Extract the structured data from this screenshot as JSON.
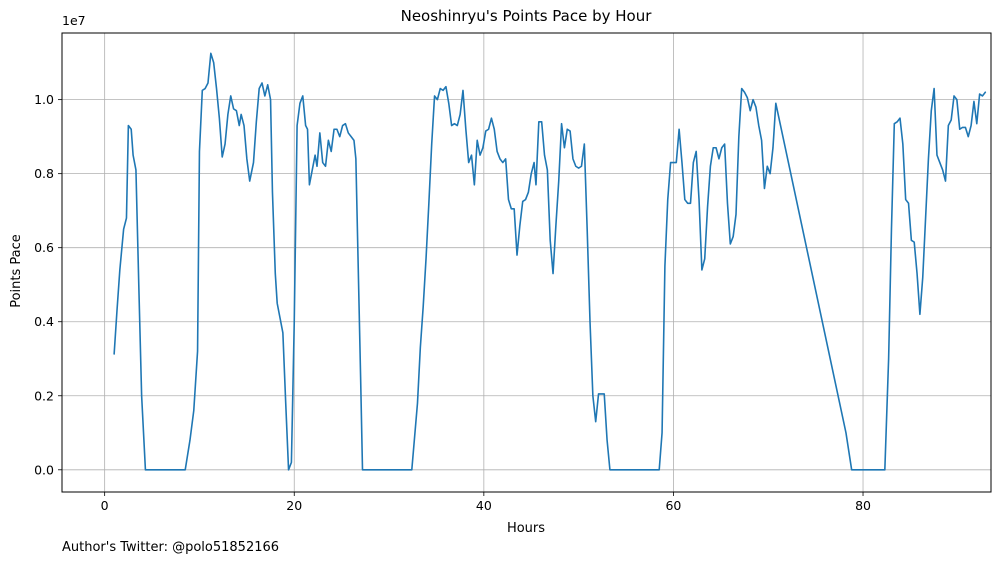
{
  "chart_data": {
    "type": "line",
    "title": "Neoshinryu's Points Pace by Hour",
    "xlabel": "Hours",
    "ylabel": "Points Pace",
    "y_offset_label": "1e7",
    "xlim": [
      -4.5,
      93.5
    ],
    "ylim": [
      -600000,
      11800000
    ],
    "x_ticks": [
      0,
      20,
      40,
      60,
      80
    ],
    "x_tick_labels": [
      "0",
      "20",
      "40",
      "60",
      "80"
    ],
    "y_ticks": [
      0,
      2000000,
      4000000,
      6000000,
      8000000,
      10000000
    ],
    "y_tick_labels": [
      "0.0",
      "0.2",
      "0.4",
      "0.6",
      "0.8",
      "1.0"
    ],
    "grid": true,
    "series": [
      {
        "color": "#1f77b4",
        "points": [
          [
            1.0,
            3130000
          ],
          [
            1.3,
            4300000
          ],
          [
            1.6,
            5400000
          ],
          [
            2.0,
            6500000
          ],
          [
            2.3,
            6800000
          ],
          [
            2.5,
            9300000
          ],
          [
            2.8,
            9200000
          ],
          [
            3.0,
            8500000
          ],
          [
            3.3,
            8100000
          ],
          [
            3.6,
            5000000
          ],
          [
            3.9,
            2000000
          ],
          [
            4.3,
            0
          ],
          [
            5.0,
            0
          ],
          [
            6.0,
            0
          ],
          [
            7.0,
            0
          ],
          [
            8.0,
            0
          ],
          [
            8.5,
            0
          ],
          [
            9.0,
            800000
          ],
          [
            9.4,
            1600000
          ],
          [
            9.8,
            3200000
          ],
          [
            10.0,
            8600000
          ],
          [
            10.3,
            10250000
          ],
          [
            10.6,
            10300000
          ],
          [
            10.9,
            10450000
          ],
          [
            11.2,
            11250000
          ],
          [
            11.5,
            11000000
          ],
          [
            11.8,
            10300000
          ],
          [
            12.1,
            9500000
          ],
          [
            12.4,
            8450000
          ],
          [
            12.7,
            8800000
          ],
          [
            13.0,
            9600000
          ],
          [
            13.3,
            10100000
          ],
          [
            13.6,
            9750000
          ],
          [
            13.9,
            9700000
          ],
          [
            14.2,
            9300000
          ],
          [
            14.4,
            9600000
          ],
          [
            14.7,
            9300000
          ],
          [
            15.0,
            8400000
          ],
          [
            15.3,
            7800000
          ],
          [
            15.7,
            8300000
          ],
          [
            16.0,
            9400000
          ],
          [
            16.3,
            10300000
          ],
          [
            16.6,
            10450000
          ],
          [
            16.9,
            10100000
          ],
          [
            17.2,
            10400000
          ],
          [
            17.5,
            10000000
          ],
          [
            17.7,
            7500000
          ],
          [
            18.0,
            5300000
          ],
          [
            18.2,
            4500000
          ],
          [
            18.5,
            4100000
          ],
          [
            18.8,
            3700000
          ],
          [
            19.1,
            1800000
          ],
          [
            19.4,
            0
          ],
          [
            19.7,
            200000
          ],
          [
            20.0,
            4000000
          ],
          [
            20.3,
            9300000
          ],
          [
            20.6,
            9900000
          ],
          [
            20.9,
            10100000
          ],
          [
            21.2,
            9300000
          ],
          [
            21.4,
            9200000
          ],
          [
            21.6,
            7700000
          ],
          [
            21.9,
            8100000
          ],
          [
            22.2,
            8500000
          ],
          [
            22.4,
            8200000
          ],
          [
            22.7,
            9100000
          ],
          [
            23.0,
            8300000
          ],
          [
            23.3,
            8200000
          ],
          [
            23.6,
            8900000
          ],
          [
            23.9,
            8600000
          ],
          [
            24.2,
            9200000
          ],
          [
            24.5,
            9200000
          ],
          [
            24.8,
            9000000
          ],
          [
            25.1,
            9300000
          ],
          [
            25.4,
            9350000
          ],
          [
            25.7,
            9100000
          ],
          [
            26.0,
            9000000
          ],
          [
            26.3,
            8900000
          ],
          [
            26.5,
            8400000
          ],
          [
            27.0,
            2500000
          ],
          [
            27.2,
            0
          ],
          [
            28.0,
            0
          ],
          [
            30.0,
            0
          ],
          [
            32.4,
            0
          ],
          [
            33.0,
            1800000
          ],
          [
            33.3,
            3300000
          ],
          [
            33.6,
            4400000
          ],
          [
            33.9,
            5700000
          ],
          [
            34.2,
            7200000
          ],
          [
            34.5,
            8800000
          ],
          [
            34.8,
            10100000
          ],
          [
            35.1,
            10000000
          ],
          [
            35.4,
            10300000
          ],
          [
            35.7,
            10250000
          ],
          [
            36.0,
            10350000
          ],
          [
            36.3,
            9900000
          ],
          [
            36.6,
            9300000
          ],
          [
            36.9,
            9350000
          ],
          [
            37.2,
            9300000
          ],
          [
            37.5,
            9600000
          ],
          [
            37.8,
            10250000
          ],
          [
            38.1,
            9200000
          ],
          [
            38.4,
            8300000
          ],
          [
            38.7,
            8500000
          ],
          [
            39.0,
            7700000
          ],
          [
            39.3,
            8900000
          ],
          [
            39.6,
            8500000
          ],
          [
            39.9,
            8700000
          ],
          [
            40.2,
            9150000
          ],
          [
            40.5,
            9200000
          ],
          [
            40.8,
            9500000
          ],
          [
            41.1,
            9200000
          ],
          [
            41.4,
            8600000
          ],
          [
            41.7,
            8400000
          ],
          [
            42.0,
            8300000
          ],
          [
            42.3,
            8400000
          ],
          [
            42.6,
            7300000
          ],
          [
            42.9,
            7050000
          ],
          [
            43.2,
            7050000
          ],
          [
            43.5,
            5800000
          ],
          [
            43.8,
            6600000
          ],
          [
            44.1,
            7250000
          ],
          [
            44.4,
            7300000
          ],
          [
            44.7,
            7500000
          ],
          [
            45.0,
            8000000
          ],
          [
            45.3,
            8300000
          ],
          [
            45.5,
            7700000
          ],
          [
            45.8,
            9400000
          ],
          [
            46.1,
            9400000
          ],
          [
            46.4,
            8500000
          ],
          [
            46.7,
            8100000
          ],
          [
            47.0,
            6200000
          ],
          [
            47.3,
            5300000
          ],
          [
            47.6,
            6600000
          ],
          [
            47.9,
            7800000
          ],
          [
            48.2,
            9350000
          ],
          [
            48.5,
            8700000
          ],
          [
            48.8,
            9200000
          ],
          [
            49.1,
            9150000
          ],
          [
            49.4,
            8400000
          ],
          [
            49.7,
            8200000
          ],
          [
            50.0,
            8150000
          ],
          [
            50.3,
            8200000
          ],
          [
            50.6,
            8800000
          ],
          [
            50.9,
            6500000
          ],
          [
            51.2,
            4000000
          ],
          [
            51.5,
            2000000
          ],
          [
            51.8,
            1300000
          ],
          [
            52.1,
            2050000
          ],
          [
            52.4,
            2050000
          ],
          [
            52.7,
            2050000
          ],
          [
            53.0,
            800000
          ],
          [
            53.3,
            0
          ],
          [
            54.0,
            0
          ],
          [
            56.0,
            0
          ],
          [
            58.5,
            0
          ],
          [
            58.8,
            1000000
          ],
          [
            59.1,
            5500000
          ],
          [
            59.4,
            7300000
          ],
          [
            59.7,
            8300000
          ],
          [
            60.0,
            8300000
          ],
          [
            60.3,
            8300000
          ],
          [
            60.6,
            9200000
          ],
          [
            60.9,
            8300000
          ],
          [
            61.2,
            7300000
          ],
          [
            61.5,
            7200000
          ],
          [
            61.8,
            7200000
          ],
          [
            62.1,
            8300000
          ],
          [
            62.4,
            8600000
          ],
          [
            62.7,
            7300000
          ],
          [
            63.0,
            5400000
          ],
          [
            63.3,
            5700000
          ],
          [
            63.6,
            7100000
          ],
          [
            63.9,
            8200000
          ],
          [
            64.2,
            8700000
          ],
          [
            64.5,
            8700000
          ],
          [
            64.8,
            8400000
          ],
          [
            65.1,
            8700000
          ],
          [
            65.4,
            8800000
          ],
          [
            65.7,
            7200000
          ],
          [
            66.0,
            6100000
          ],
          [
            66.3,
            6300000
          ],
          [
            66.6,
            6900000
          ],
          [
            66.9,
            9000000
          ],
          [
            67.2,
            10300000
          ],
          [
            67.5,
            10200000
          ],
          [
            67.8,
            10050000
          ],
          [
            68.1,
            9700000
          ],
          [
            68.4,
            10000000
          ],
          [
            68.7,
            9800000
          ],
          [
            69.0,
            9300000
          ],
          [
            69.3,
            8900000
          ],
          [
            69.6,
            7600000
          ],
          [
            69.9,
            8200000
          ],
          [
            70.2,
            8000000
          ],
          [
            70.5,
            8700000
          ],
          [
            70.8,
            9900000
          ],
          [
            78.2,
            1000000
          ],
          [
            78.8,
            0
          ],
          [
            80.0,
            0
          ],
          [
            82.0,
            0
          ],
          [
            82.3,
            0
          ],
          [
            82.7,
            3000000
          ],
          [
            83.0,
            6500000
          ],
          [
            83.3,
            9350000
          ],
          [
            83.6,
            9400000
          ],
          [
            83.9,
            9500000
          ],
          [
            84.2,
            8800000
          ],
          [
            84.5,
            7300000
          ],
          [
            84.8,
            7200000
          ],
          [
            85.1,
            6200000
          ],
          [
            85.4,
            6150000
          ],
          [
            85.7,
            5300000
          ],
          [
            86.0,
            4200000
          ],
          [
            86.3,
            5200000
          ],
          [
            86.6,
            6800000
          ],
          [
            86.9,
            8400000
          ],
          [
            87.2,
            9700000
          ],
          [
            87.5,
            10300000
          ],
          [
            87.8,
            8500000
          ],
          [
            88.1,
            8300000
          ],
          [
            88.4,
            8100000
          ],
          [
            88.7,
            7800000
          ],
          [
            89.0,
            9300000
          ],
          [
            89.3,
            9450000
          ],
          [
            89.6,
            10100000
          ],
          [
            89.9,
            10000000
          ],
          [
            90.2,
            9200000
          ],
          [
            90.5,
            9250000
          ],
          [
            90.8,
            9250000
          ],
          [
            91.1,
            9000000
          ],
          [
            91.4,
            9300000
          ],
          [
            91.7,
            9950000
          ],
          [
            92.0,
            9350000
          ],
          [
            92.3,
            10150000
          ],
          [
            92.6,
            10100000
          ],
          [
            92.9,
            10200000
          ]
        ]
      }
    ]
  },
  "footer": {
    "text": "Author's Twitter: @polo51852166"
  }
}
